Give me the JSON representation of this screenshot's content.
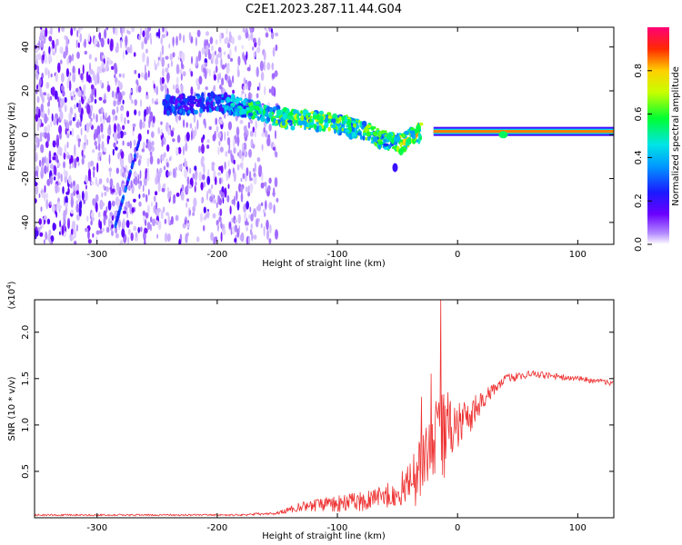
{
  "title": "C2E1.2023.287.11.44.G04",
  "colors": {
    "snr_line": "#ee3333",
    "plot_bg": "#ffffff",
    "frame": "#000000"
  },
  "chart_data": [
    {
      "type": "heatmap",
      "xlabel": "Height of straight line (km)",
      "ylabel": "Frequency (Hz)",
      "xlim": [
        -352,
        130
      ],
      "ylim": [
        -50,
        49
      ],
      "xticks": [
        -300,
        -200,
        -100,
        0,
        100
      ],
      "yticks": [
        -40,
        -20,
        0,
        20,
        40
      ],
      "colorbar": {
        "label": "Normalized spectral amplitude",
        "range": [
          0,
          1
        ],
        "ticks": [
          "0.0",
          "0.2",
          "0.4",
          "0.6",
          "0.8"
        ],
        "colormap": "rainbow (white/lavender low, violet-blue-cyan-green-yellow-red-magenta high)"
      },
      "features": {
        "noise_region_x": [
          -352,
          -150
        ],
        "drift_track": [
          {
            "x": -245,
            "freq": 13,
            "amplitude": 0.25
          },
          {
            "x": -200,
            "freq": 15,
            "amplitude": 0.3
          },
          {
            "x": -170,
            "freq": 11,
            "amplitude": 0.5
          },
          {
            "x": -140,
            "freq": 7,
            "amplitude": 0.55
          },
          {
            "x": -110,
            "freq": 6,
            "amplitude": 0.6
          },
          {
            "x": -80,
            "freq": 2,
            "amplitude": 0.55
          },
          {
            "x": -60,
            "freq": -3,
            "amplitude": 0.5
          },
          {
            "x": -45,
            "freq": -4,
            "amplitude": 0.6
          },
          {
            "x": -30,
            "freq": 2,
            "amplitude": 0.7
          }
        ],
        "steady_line": {
          "x_from": -20,
          "x_to": 130,
          "freq": 1.5,
          "amplitude": 1.0
        },
        "diagonal_streak": {
          "from": {
            "x": -285,
            "freq": -42
          },
          "to": {
            "x": -265,
            "freq": -3
          }
        }
      }
    },
    {
      "type": "line",
      "xlabel": "Height of straight line (km)",
      "ylabel": "SNR (10 * v/v)",
      "y_multiplier": "(x10^4)",
      "multiplier_base": "(x10",
      "multiplier_exp": "4",
      "multiplier_close": ")",
      "xlim": [
        -352,
        130
      ],
      "ylim": [
        0,
        2.35
      ],
      "xticks": [
        -300,
        -200,
        -100,
        0,
        100
      ],
      "yticks": [
        0.5,
        1.0,
        1.5,
        2.0
      ],
      "ytick_labels": [
        "0.5",
        "1.0",
        "1.5",
        "2.0"
      ],
      "grid": false,
      "series": [
        {
          "color": "#ee3333",
          "envelope": [
            {
              "x": -352,
              "mean": 0.03,
              "amp": 0.01
            },
            {
              "x": -180,
              "mean": 0.03,
              "amp": 0.01
            },
            {
              "x": -150,
              "mean": 0.05,
              "amp": 0.02
            },
            {
              "x": -130,
              "mean": 0.12,
              "amp": 0.05
            },
            {
              "x": -100,
              "mean": 0.15,
              "amp": 0.09
            },
            {
              "x": -70,
              "mean": 0.18,
              "amp": 0.12
            },
            {
              "x": -50,
              "mean": 0.28,
              "amp": 0.15
            },
            {
              "x": -35,
              "mean": 0.42,
              "amp": 0.3
            },
            {
              "x": -25,
              "mean": 0.7,
              "amp": 0.4
            },
            {
              "x": -12,
              "mean": 0.9,
              "amp": 0.5
            },
            {
              "x": 0,
              "mean": 0.95,
              "amp": 0.3
            },
            {
              "x": 20,
              "mean": 1.25,
              "amp": 0.1
            },
            {
              "x": 40,
              "mean": 1.5,
              "amp": 0.05
            },
            {
              "x": 60,
              "mean": 1.55,
              "amp": 0.04
            },
            {
              "x": 100,
              "mean": 1.5,
              "amp": 0.03
            },
            {
              "x": 130,
              "mean": 1.45,
              "amp": 0.03
            }
          ],
          "spikes": [
            {
              "x": -14,
              "y": 2.35
            },
            {
              "x": -22,
              "y": 1.55
            },
            {
              "x": -30,
              "y": 1.3
            },
            {
              "x": -8,
              "y": 1.35
            }
          ]
        }
      ]
    }
  ]
}
